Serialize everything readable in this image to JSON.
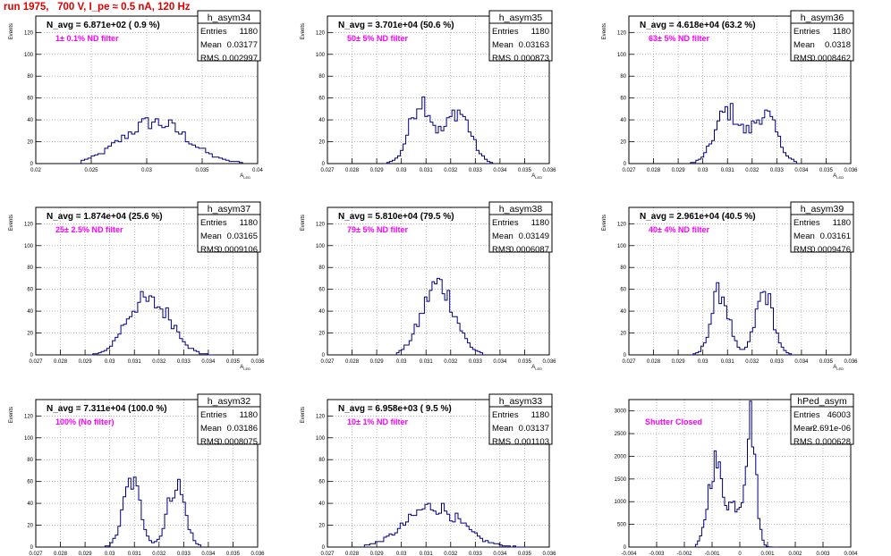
{
  "page": {
    "title": "run 1975,   700 V, I_pe ≈ 0.5 nA, 120 Hz",
    "title_color": "#e00000",
    "annotation_color": "#ff00ff",
    "line_color": "#000080"
  },
  "chart_data": [
    {
      "type": "histogram",
      "name": "h_asym34",
      "ylabel": "Events",
      "xlabel": "A_LED",
      "xlim": [
        0.02,
        0.042
      ],
      "ylim": [
        0,
        135
      ],
      "xticks": [
        "0.02",
        "0.025",
        "0.03",
        "0.035",
        "0.04"
      ],
      "yticks": [
        "0",
        "20",
        "40",
        "60",
        "80",
        "100",
        "120"
      ],
      "navg": "N_avg = 6.871e+02 ( 0.9 %)",
      "note": "1± 0.1% ND filter",
      "stats": [
        [
          "Entries",
          "1180"
        ],
        [
          "Mean",
          "0.03177"
        ],
        [
          "RMS",
          "0.002997"
        ]
      ],
      "profile": {
        "type": "gauss",
        "n": 48,
        "x0": 0.0245,
        "x1": 0.0405,
        "peaks": [
          [
            0.0318,
            0.0032,
            38
          ]
        ]
      }
    },
    {
      "type": "histogram",
      "name": "h_asym35",
      "ylabel": "Events",
      "xlabel": "A_LED",
      "xlim": [
        0.027,
        0.036
      ],
      "ylim": [
        0,
        135
      ],
      "xticks": [
        "0.027",
        "0.028",
        "0.029",
        "0.03",
        "0.031",
        "0.032",
        "0.033",
        "0.034",
        "0.035",
        "0.036"
      ],
      "yticks": [
        "0",
        "20",
        "40",
        "60",
        "80",
        "100",
        "120"
      ],
      "navg": "N_avg = 3.701e+04 (50.6 %)",
      "note": "50± 5% ND filter",
      "stats": [
        [
          "Entries",
          "1180"
        ],
        [
          "Mean",
          "0.03163"
        ],
        [
          "RMS",
          "0.000873"
        ]
      ],
      "profile": {
        "type": "gauss",
        "n": 40,
        "x0": 0.0293,
        "x1": 0.0337,
        "peaks": [
          [
            0.0308,
            0.00045,
            58
          ],
          [
            0.0323,
            0.0005,
            48
          ]
        ]
      }
    },
    {
      "type": "histogram",
      "name": "h_asym36",
      "ylabel": "Events",
      "xlabel": "A_LED",
      "xlim": [
        0.027,
        0.036
      ],
      "ylim": [
        0,
        135
      ],
      "xticks": [
        "0.027",
        "0.028",
        "0.029",
        "0.03",
        "0.031",
        "0.032",
        "0.033",
        "0.034",
        "0.035",
        "0.036"
      ],
      "yticks": [
        "0",
        "20",
        "40",
        "60",
        "80",
        "100",
        "120"
      ],
      "navg": "N_avg = 4.618e+04 (63.2 %)",
      "note": "63± 5% ND filter",
      "stats": [
        [
          "Entries",
          "1180"
        ],
        [
          "Mean",
          "0.0318"
        ],
        [
          "RMS",
          "0.0008462"
        ]
      ],
      "profile": {
        "type": "gauss",
        "n": 40,
        "x0": 0.0295,
        "x1": 0.0338,
        "peaks": [
          [
            0.031,
            0.0005,
            48
          ],
          [
            0.0325,
            0.0005,
            45
          ]
        ]
      }
    },
    {
      "type": "histogram",
      "name": "h_asym37",
      "ylabel": "Events",
      "xlabel": "A_LED",
      "xlim": [
        0.027,
        0.036
      ],
      "ylim": [
        0,
        135
      ],
      "xticks": [
        "0.027",
        "0.028",
        "0.029",
        "0.03",
        "0.031",
        "0.032",
        "0.033",
        "0.034",
        "0.035",
        "0.036"
      ],
      "yticks": [
        "0",
        "20",
        "40",
        "60",
        "80",
        "100",
        "120"
      ],
      "navg": "N_avg = 1.874e+04 (25.6 %)",
      "note": "25± 2.5% ND filter",
      "stats": [
        [
          "Entries",
          "1180"
        ],
        [
          "Mean",
          "0.03165"
        ],
        [
          "RMS",
          "0.0009106"
        ]
      ],
      "profile": {
        "type": "gauss",
        "n": 44,
        "x0": 0.0292,
        "x1": 0.0342,
        "peaks": [
          [
            0.0311,
            0.0006,
            40
          ],
          [
            0.0322,
            0.0006,
            33
          ]
        ]
      }
    },
    {
      "type": "histogram",
      "name": "h_asym38",
      "ylabel": "Events",
      "xlabel": "A_LED",
      "xlim": [
        0.027,
        0.036
      ],
      "ylim": [
        0,
        135
      ],
      "xticks": [
        "0.027",
        "0.028",
        "0.029",
        "0.03",
        "0.031",
        "0.032",
        "0.033",
        "0.034",
        "0.035",
        "0.036"
      ],
      "yticks": [
        "0",
        "20",
        "40",
        "60",
        "80",
        "100",
        "120"
      ],
      "navg": "N_avg = 5.810e+04 (79.5 %)",
      "note": "79± 5% ND filter",
      "stats": [
        [
          "Entries",
          "1180"
        ],
        [
          "Mean",
          "0.03149"
        ],
        [
          "RMS",
          "0.0006087"
        ]
      ],
      "profile": {
        "type": "gauss",
        "n": 34,
        "x0": 0.0298,
        "x1": 0.0333,
        "peaks": [
          [
            0.0315,
            0.00065,
            65
          ]
        ]
      }
    },
    {
      "type": "histogram",
      "name": "h_asym39",
      "ylabel": "Events",
      "xlabel": "A_LED",
      "xlim": [
        0.027,
        0.036
      ],
      "ylim": [
        0,
        135
      ],
      "xticks": [
        "0.027",
        "0.028",
        "0.029",
        "0.03",
        "0.031",
        "0.032",
        "0.033",
        "0.034",
        "0.035",
        "0.036"
      ],
      "yticks": [
        "0",
        "20",
        "40",
        "60",
        "80",
        "100",
        "120"
      ],
      "navg": "N_avg = 2.961e+04 (40.5 %)",
      "note": "40± 4% ND filter",
      "stats": [
        [
          "Entries",
          "1180"
        ],
        [
          "Mean",
          "0.03161"
        ],
        [
          "RMS",
          "0.0009476"
        ]
      ],
      "profile": {
        "type": "gauss",
        "n": 40,
        "x0": 0.0295,
        "x1": 0.0337,
        "peaks": [
          [
            0.0307,
            0.00035,
            58
          ],
          [
            0.0325,
            0.00035,
            57
          ]
        ]
      }
    },
    {
      "type": "histogram",
      "name": "h_asym32",
      "ylabel": "Events",
      "xlabel": "A_LED",
      "xlim": [
        0.027,
        0.036
      ],
      "ylim": [
        0,
        135
      ],
      "xticks": [
        "0.027",
        "0.028",
        "0.029",
        "0.03",
        "0.031",
        "0.032",
        "0.033",
        "0.034",
        "0.035",
        "0.036"
      ],
      "yticks": [
        "0",
        "20",
        "40",
        "60",
        "80",
        "100",
        "120"
      ],
      "navg": "N_avg = 7.311e+04 (100.0 %)",
      "note": "100% (No filter)",
      "stats": [
        [
          "Entries",
          "1180"
        ],
        [
          "Mean",
          "0.03186"
        ],
        [
          "RMS",
          "0.0008075"
        ]
      ],
      "profile": {
        "type": "gauss",
        "n": 38,
        "x0": 0.0297,
        "x1": 0.0337,
        "peaks": [
          [
            0.0309,
            0.00035,
            60
          ],
          [
            0.0327,
            0.00035,
            58
          ]
        ]
      }
    },
    {
      "type": "histogram",
      "name": "h_asym33",
      "ylabel": "Events",
      "xlabel": "A_LED",
      "xlim": [
        0.027,
        0.036
      ],
      "ylim": [
        0,
        135
      ],
      "xticks": [
        "0.027",
        "0.028",
        "0.029",
        "0.03",
        "0.031",
        "0.032",
        "0.033",
        "0.034",
        "0.035",
        "0.036"
      ],
      "yticks": [
        "0",
        "20",
        "40",
        "60",
        "80",
        "100",
        "120"
      ],
      "navg": "N_avg = 6.958e+03 ( 9.5 %)",
      "note": "10± 1% ND filter",
      "stats": [
        [
          "Entries",
          "1180"
        ],
        [
          "Mean",
          "0.03137"
        ],
        [
          "RMS",
          "0.001103"
        ]
      ],
      "profile": {
        "type": "gauss",
        "n": 60,
        "x0": 0.0285,
        "x1": 0.0352,
        "peaks": [
          [
            0.0313,
            0.0011,
            37
          ]
        ]
      }
    },
    {
      "type": "histogram",
      "name": "hPed_asym",
      "ylabel": "",
      "xlabel": "",
      "xlim": [
        -0.004,
        0.004
      ],
      "ylim": [
        0,
        3250
      ],
      "xticks": [
        "-0.004",
        "-0.003",
        "-0.002",
        "-0.001",
        "0",
        "0.001",
        "0.002",
        "0.003",
        "0.004"
      ],
      "yticks": [
        "0",
        "500",
        "1000",
        "1500",
        "2000",
        "2500",
        "3000"
      ],
      "navg": "",
      "note": "Shutter Closed",
      "stats": [
        [
          "Entries",
          "46003"
        ],
        [
          "Mean",
          "-2.691e-06"
        ],
        [
          "RMS",
          "0.000628"
        ]
      ],
      "profile": {
        "type": "gauss",
        "n": 40,
        "x0": -0.0016,
        "x1": 0.0014,
        "peaks": [
          [
            -0.0009,
            0.00025,
            1800
          ],
          [
            0.0004,
            0.00018,
            2700
          ],
          [
            -0.0002,
            0.0003,
            900
          ]
        ]
      }
    }
  ]
}
